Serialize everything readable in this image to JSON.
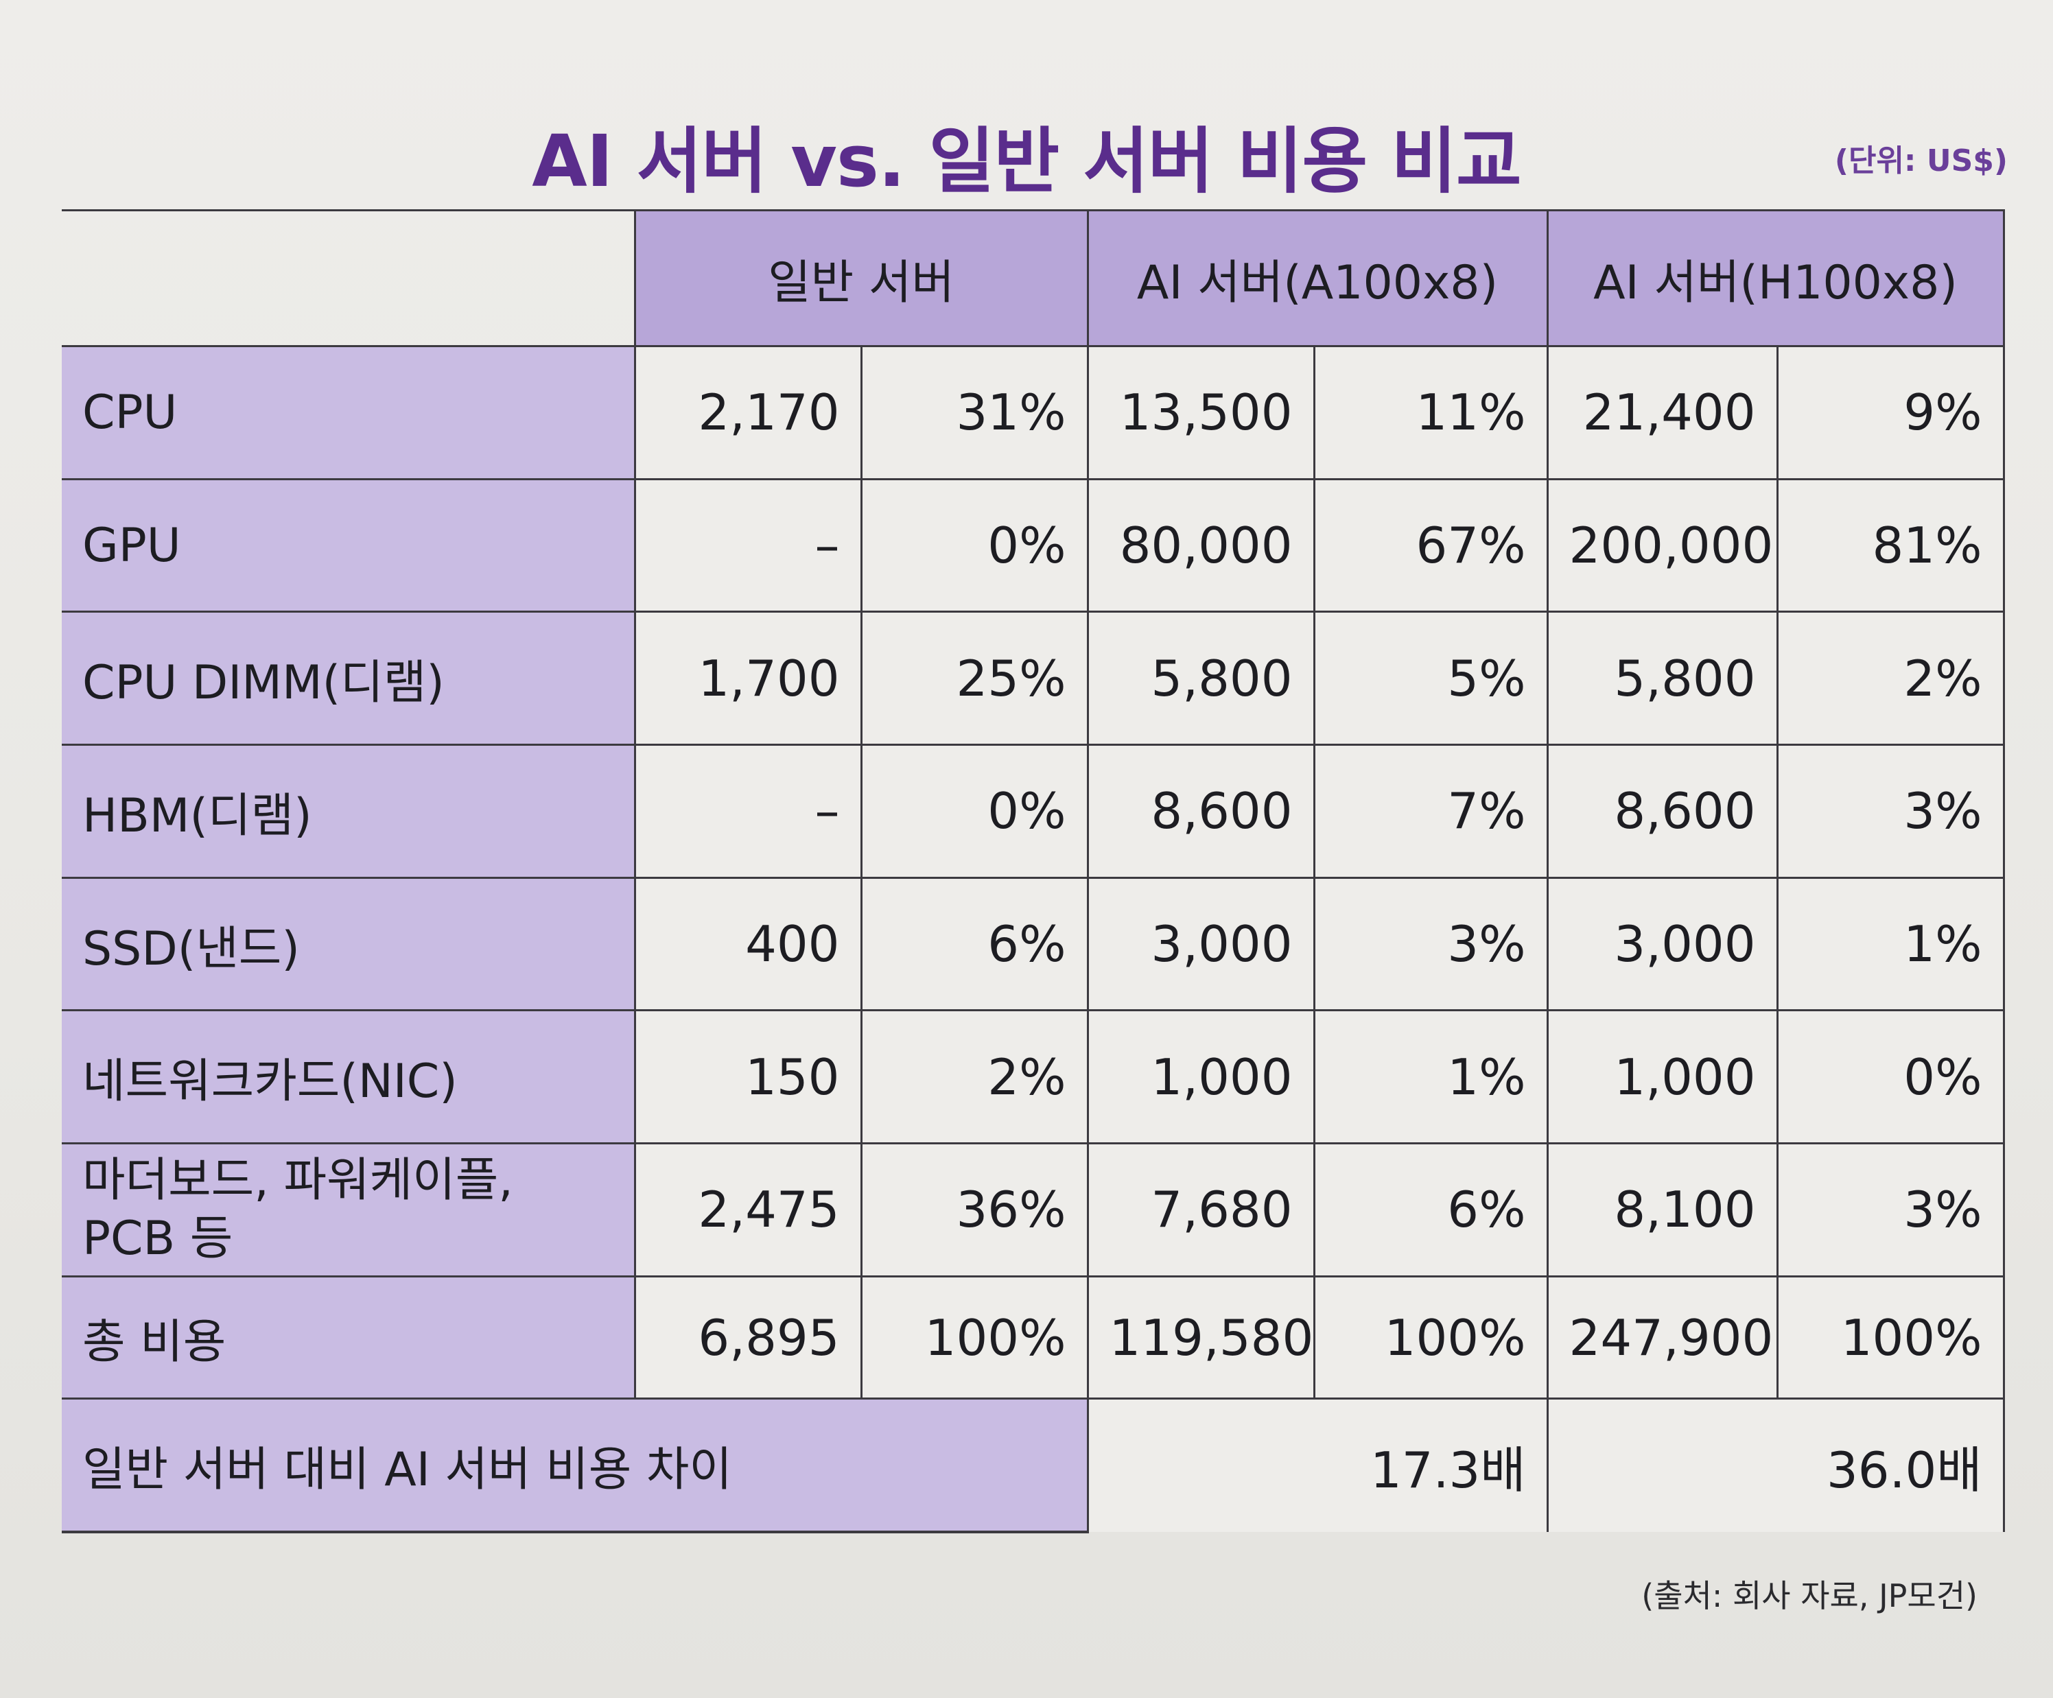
{
  "title": "AI 서버 vs. 일반 서버 비용 비교",
  "unit": "(단위: US$)",
  "header": {
    "blank": "",
    "col1": "일반 서버",
    "col2": "AI 서버(A100x8)",
    "col3": "AI 서버(H100x8)"
  },
  "rows": [
    {
      "label": "CPU",
      "v1": "2,170",
      "p1": "31%",
      "v2": "13,500",
      "p2": "11%",
      "v3": "21,400",
      "p3": "9%"
    },
    {
      "label": "GPU",
      "v1": "–",
      "p1": "0%",
      "v2": "80,000",
      "p2": "67%",
      "v3": "200,000",
      "p3": "81%"
    },
    {
      "label": "CPU DIMM(디램)",
      "v1": "1,700",
      "p1": "25%",
      "v2": "5,800",
      "p2": "5%",
      "v3": "5,800",
      "p3": "2%"
    },
    {
      "label": "HBM(디램)",
      "v1": "–",
      "p1": "0%",
      "v2": "8,600",
      "p2": "7%",
      "v3": "8,600",
      "p3": "3%"
    },
    {
      "label": "SSD(낸드)",
      "v1": "400",
      "p1": "6%",
      "v2": "3,000",
      "p2": "3%",
      "v3": "3,000",
      "p3": "1%"
    },
    {
      "label": "네트워크카드(NIC)",
      "v1": "150",
      "p1": "2%",
      "v2": "1,000",
      "p2": "1%",
      "v3": "1,000",
      "p3": "0%"
    },
    {
      "label": "마더보드, 파워케이플, PCB 등",
      "v1": "2,475",
      "p1": "36%",
      "v2": "7,680",
      "p2": "6%",
      "v3": "8,100",
      "p3": "3%"
    },
    {
      "label": "총 비용",
      "v1": "6,895",
      "p1": "100%",
      "v2": "119,580",
      "p2": "100%",
      "v3": "247,900",
      "p3": "100%"
    }
  ],
  "diff": {
    "label": "일반 서버 대비 AI 서버 비용 차이",
    "a100": "17.3배",
    "h100": "36.0배"
  },
  "source": "(출처: 회사 자료, JP모건)"
}
